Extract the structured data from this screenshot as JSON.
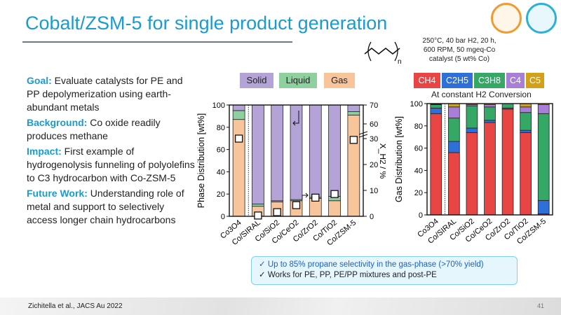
{
  "title": "Cobalt/ZSM-5 for single product generation",
  "left": {
    "goal_label": "Goal:",
    "goal": " Evaluate catalysts for PE and PP depolymerization using earth-abundant metals",
    "background_label": "Background:",
    "background": " Co oxide readily produces methane",
    "impact_label": "Impact:",
    "impact": " First example of hydrogenolysis funneling of polyolefins to C3 hydrocarbon with Co-ZSM-5",
    "future_label": "Future Work:",
    "future": " Understanding role of metal and support to selectively access longer chain hydrocarbons"
  },
  "conditions": [
    "250°C, 40 bar H2, 20 h,",
    "600 RPM, 50 mgeq-Co",
    "catalyst (5 wt% Co)"
  ],
  "polymer_subscript": "n",
  "callout": [
    "✓  Up to 85% propane selectivity in the gas-phase (>70% yield)",
    "✓  Works for PE, PP, PE/PP mixtures and post-PE"
  ],
  "citation": "Zichitella et al., JACS Au 2022",
  "page_number": "41",
  "colors": {
    "accent": "#1a9bd0"
  },
  "chart_data": [
    {
      "type": "bar",
      "stacked": true,
      "categories": [
        "Co3O4",
        "Co/SIRAL",
        "Co/SiO2",
        "Co/CeO2",
        "Co/ZrO2",
        "Co/TiO2",
        "Co/ZSM-5"
      ],
      "series": [
        {
          "name": "Gas",
          "color": "#f8c49a",
          "values": [
            87,
            9,
            13,
            14,
            16,
            14,
            91
          ]
        },
        {
          "name": "Liquid",
          "color": "#8fd19e",
          "values": [
            8,
            2,
            1,
            1,
            1,
            4,
            3
          ]
        },
        {
          "name": "Solid",
          "color": "#b3a3d6",
          "values": [
            5,
            89,
            86,
            85,
            83,
            82,
            6
          ]
        }
      ],
      "ylabel": "Phase Distribution [wt%]",
      "ylim": [
        0,
        100
      ],
      "yticks": [
        0,
        20,
        40,
        60,
        80,
        100
      ],
      "y2label": "X_H2 / %",
      "y2ticks": [
        0,
        10,
        20,
        30,
        60,
        70
      ],
      "y2_axis_break": [
        30,
        60
      ],
      "y2_values": [
        59.5,
        0.3,
        1.6,
        4.3,
        7.2,
        8.6,
        29.5
      ],
      "legend": [
        "Solid",
        "Liquid",
        "Gas"
      ],
      "legend_position": "top"
    },
    {
      "type": "bar",
      "stacked": true,
      "title": "At constant H2 Conversion",
      "categories": [
        "Co3O4",
        "Co/SIRAL",
        "Co/SiO2",
        "Co/CeO2",
        "Co/ZrO2",
        "Co/TiO2",
        "Co/ZSM-5"
      ],
      "series": [
        {
          "name": "CH4",
          "color": "#e84545",
          "values": [
            91,
            56,
            74,
            83,
            95,
            74,
            1
          ]
        },
        {
          "name": "C2H5",
          "color": "#2f6fd8",
          "values": [
            5,
            10,
            4,
            2,
            1,
            2,
            12
          ]
        },
        {
          "name": "C3H8",
          "color": "#35a866",
          "values": [
            3,
            21,
            20,
            12,
            4,
            16,
            78
          ]
        },
        {
          "name": "C4",
          "color": "#a87ed6",
          "values": [
            0.5,
            10,
            1,
            2,
            0,
            5,
            8
          ]
        },
        {
          "name": "C5",
          "color": "#d4a017",
          "values": [
            0.5,
            3,
            1,
            1,
            0,
            3,
            1
          ]
        }
      ],
      "ylabel": "Gas Distribution [wt%]",
      "ylim": [
        0,
        100
      ],
      "yticks": [
        0,
        20,
        40,
        60,
        80,
        100
      ],
      "legend_position": "top"
    }
  ]
}
